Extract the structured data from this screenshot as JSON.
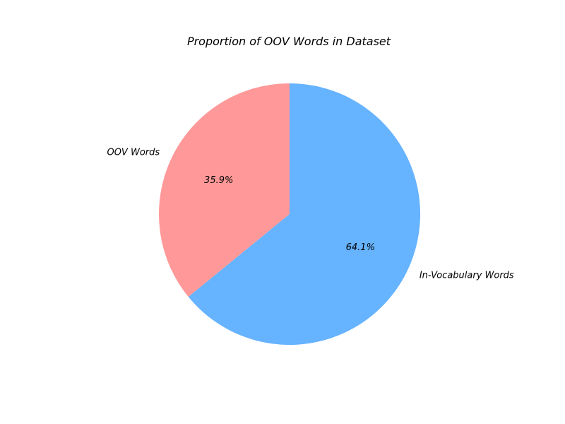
{
  "chart_data": {
    "type": "pie",
    "title": "Proportion of OOV Words in Dataset",
    "slices": [
      {
        "label": "OOV Words",
        "value": 35.9,
        "pct_label": "35.9%",
        "color": "#ff9999"
      },
      {
        "label": "In-Vocabulary Words",
        "value": 64.1,
        "pct_label": "64.1%",
        "color": "#66b3ff"
      }
    ],
    "start_angle_deg": 90,
    "direction": "counterclockwise"
  }
}
